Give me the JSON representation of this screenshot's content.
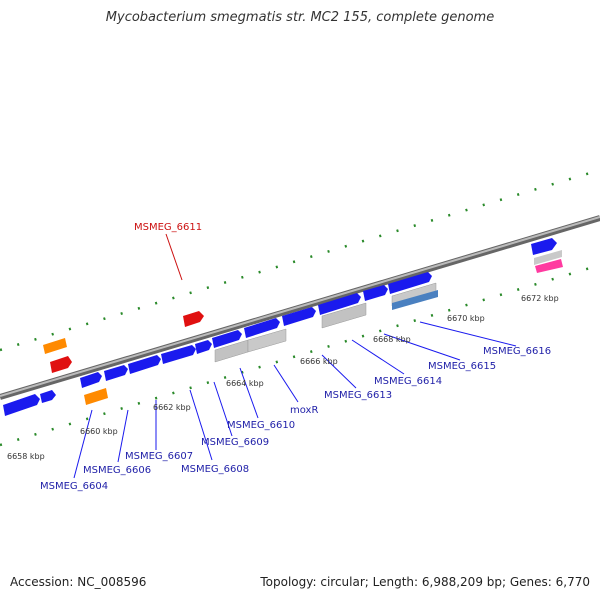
{
  "title": "Mycobacterium smegmatis str. MC2 155, complete genome",
  "footer": {
    "accession": "Accession: NC_008596",
    "info": "Topology: circular; Length: 6,988,209 bp; Genes: 6,770"
  },
  "ticks": [
    "6658 kbp",
    "6660 kbp",
    "6662 kbp",
    "6664 kbp",
    "6666 kbp",
    "6668 kbp",
    "6670 kbp",
    "6672 kbp"
  ],
  "genes": [
    "MSMEG_6604",
    "MSMEG_6606",
    "MSMEG_6607",
    "MSMEG_6608",
    "MSMEG_6609",
    "MSMEG_6610",
    "moxR",
    "MSMEG_6613",
    "MSMEG_6614",
    "MSMEG_6615",
    "MSMEG_6616"
  ],
  "highlight_gene": "MSMEG_6611",
  "colors": {
    "gene_forward": "#1a1aee",
    "gene_other": "#c0c0c0",
    "rna": "#ff8a00",
    "pseudo": "#e01010",
    "misc": "#ff3aa0",
    "tick": "#2a8a2a",
    "backbone": "#888888"
  }
}
